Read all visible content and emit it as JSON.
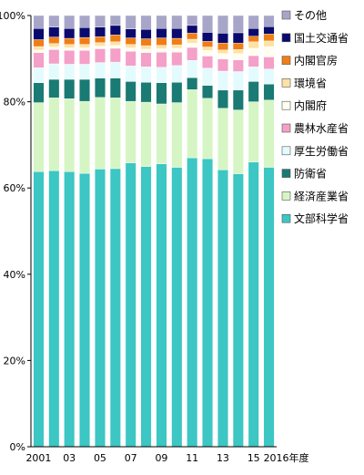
{
  "chart_data": {
    "type": "bar",
    "stacked": true,
    "percent": true,
    "categories": [
      "2001",
      "2002",
      "2003",
      "2004",
      "2005",
      "2006",
      "2007",
      "2008",
      "2009",
      "2010",
      "2011",
      "2012",
      "2013",
      "2014",
      "2015",
      "2016"
    ],
    "x_tick_labels": [
      "2001",
      "",
      "03",
      "",
      "05",
      "",
      "07",
      "",
      "09",
      "",
      "11",
      "",
      "13",
      "",
      "15",
      "2016年度"
    ],
    "y_ticks": [
      "0%",
      "20%",
      "40%",
      "60%",
      "80%",
      "100%"
    ],
    "ylim": [
      0,
      100
    ],
    "grid": false,
    "legend_position": "right",
    "series": [
      {
        "name": "文部科学省",
        "color": "#3cc6c4",
        "values": [
          63.8,
          64.0,
          63.8,
          63.4,
          64.4,
          64.5,
          65.8,
          65.0,
          65.6,
          64.8,
          67.0,
          66.8,
          64.2,
          63.3,
          66.0,
          64.8
        ]
      },
      {
        "name": "経済産業省",
        "color": "#d6f5c4",
        "values": [
          16.0,
          16.9,
          16.9,
          16.7,
          16.6,
          16.4,
          14.3,
          14.9,
          13.9,
          15.0,
          15.8,
          14.0,
          14.3,
          14.8,
          14.0,
          15.6
        ]
      },
      {
        "name": "防衛省",
        "color": "#1a7a74",
        "values": [
          4.6,
          4.3,
          4.5,
          5.1,
          4.5,
          4.6,
          4.6,
          4.6,
          4.9,
          4.7,
          2.8,
          3.0,
          4.2,
          4.6,
          4.7,
          3.7
        ]
      },
      {
        "name": "厚生労働省",
        "color": "#e4fbfd",
        "values": [
          3.5,
          3.6,
          3.5,
          3.5,
          3.6,
          3.7,
          3.6,
          3.6,
          3.6,
          3.9,
          4.0,
          4.0,
          4.4,
          4.3,
          3.4,
          3.5
        ]
      },
      {
        "name": "農林水産省",
        "color": "#f4a0c8",
        "values": [
          3.5,
          3.3,
          3.2,
          3.2,
          3.2,
          3.2,
          3.4,
          3.3,
          3.5,
          3.1,
          3.0,
          2.8,
          2.8,
          2.7,
          2.6,
          2.8
        ]
      },
      {
        "name": "内閣府",
        "color": "#fffef0",
        "values": [
          0.6,
          0.6,
          0.6,
          0.6,
          0.6,
          0.7,
          0.8,
          0.8,
          0.8,
          0.9,
          1.0,
          1.3,
          1.3,
          1.5,
          1.7,
          2.4
        ]
      },
      {
        "name": "環境省",
        "color": "#fde2a6",
        "values": [
          0.8,
          0.8,
          0.8,
          0.8,
          0.8,
          0.8,
          0.8,
          0.8,
          0.8,
          0.8,
          0.9,
          0.8,
          0.8,
          0.9,
          1.5,
          1.3
        ]
      },
      {
        "name": "内閣官房",
        "color": "#f07e16",
        "values": [
          1.6,
          1.5,
          1.4,
          1.6,
          1.4,
          1.6,
          1.5,
          1.6,
          1.7,
          1.5,
          1.4,
          1.3,
          1.6,
          1.5,
          1.3,
          1.6
        ]
      },
      {
        "name": "国土交通省",
        "color": "#0a0a6e",
        "values": [
          2.6,
          2.3,
          2.3,
          2.3,
          2.2,
          2.2,
          2.1,
          2.2,
          2.2,
          2.3,
          1.8,
          2.1,
          2.3,
          2.4,
          1.8,
          1.7
        ]
      },
      {
        "name": "その他",
        "color": "#a8a6c8",
        "values": [
          3.0,
          2.7,
          3.0,
          2.8,
          2.7,
          2.3,
          3.1,
          3.2,
          3.0,
          3.0,
          2.3,
          3.9,
          4.1,
          4.0,
          3.0,
          2.6
        ]
      }
    ]
  }
}
